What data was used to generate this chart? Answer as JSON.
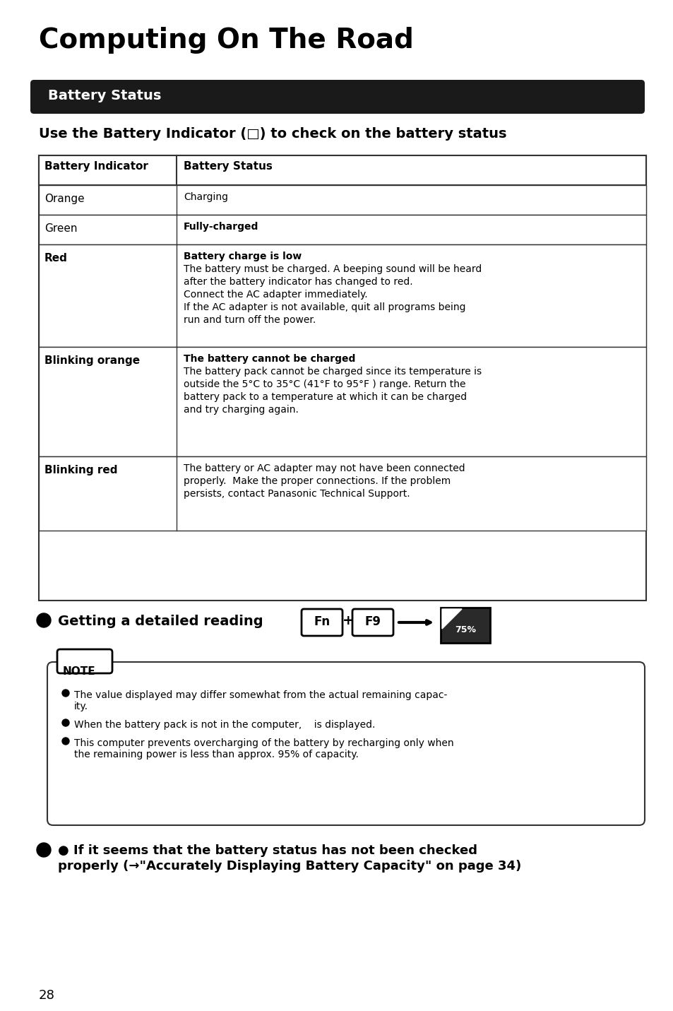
{
  "title": "Computing On The Road",
  "section_header": "Battery Status",
  "subtitle": "Use the Battery Indicator (□) to check on the battery status",
  "table_headers": [
    "Battery Indicator",
    "Battery Status"
  ],
  "table_rows": [
    {
      "col1": "Orange",
      "col2_lines": [
        [
          "Charging",
          false
        ]
      ],
      "col1_bold": false
    },
    {
      "col1": "Green",
      "col2_lines": [
        [
          "Fully-charged",
          true
        ]
      ],
      "col1_bold": false
    },
    {
      "col1": "Red",
      "col2_lines": [
        [
          "Battery charge is low",
          true
        ],
        [
          "The battery must be charged. A beeping sound will be heard",
          false
        ],
        [
          "after the battery indicator has changed to red.",
          false
        ],
        [
          "Connect the AC adapter immediately.",
          false
        ],
        [
          "If the AC adapter is not available, quit all programs being",
          false
        ],
        [
          "run and turn off the power.",
          false
        ]
      ],
      "col1_bold": true
    },
    {
      "col1": "Blinking orange",
      "col2_lines": [
        [
          "The battery cannot be charged",
          true
        ],
        [
          "The battery pack cannot be charged since its temperature is",
          false
        ],
        [
          "outside the 5°C to 35°C (41°F to 95°F ) range. Return the",
          false
        ],
        [
          "battery pack to a temperature at which it can be charged",
          false
        ],
        [
          "and try charging again.",
          false
        ]
      ],
      "col1_bold": true
    },
    {
      "col1": "Blinking red",
      "col2_lines": [
        [
          "The battery or AC adapter may not have been connected",
          false
        ],
        [
          "properly.  Make the proper connections. If the problem",
          false
        ],
        [
          "persists, contact Panasonic Technical Support.",
          false
        ]
      ],
      "col1_bold": true
    }
  ],
  "getting_reading_text": "● Getting a detailed reading",
  "fn_key": "Fn",
  "plus_sign": "+",
  "f9_key": "F9",
  "battery_icon_text": "75%",
  "note_title": "NOTE",
  "note_bullets": [
    "The value displayed may differ somewhat from the actual remaining capac-\nity.",
    "When the battery pack is not in the computer,    is displayed.",
    "This computer prevents overcharging of the battery by recharging only when\nthe remaining power is less than approx. 95% of capacity."
  ],
  "bottom_section_text1": "● If it seems that the battery status has not been checked",
  "bottom_section_text2": "properly (→\"Accurately Displaying Battery Capacity\" on page 34)",
  "page_number": "28",
  "bg_color": "#ffffff",
  "text_color": "#000000",
  "header_bg": "#1a1a1a",
  "header_text_color": "#ffffff",
  "table_border_color": "#333333"
}
